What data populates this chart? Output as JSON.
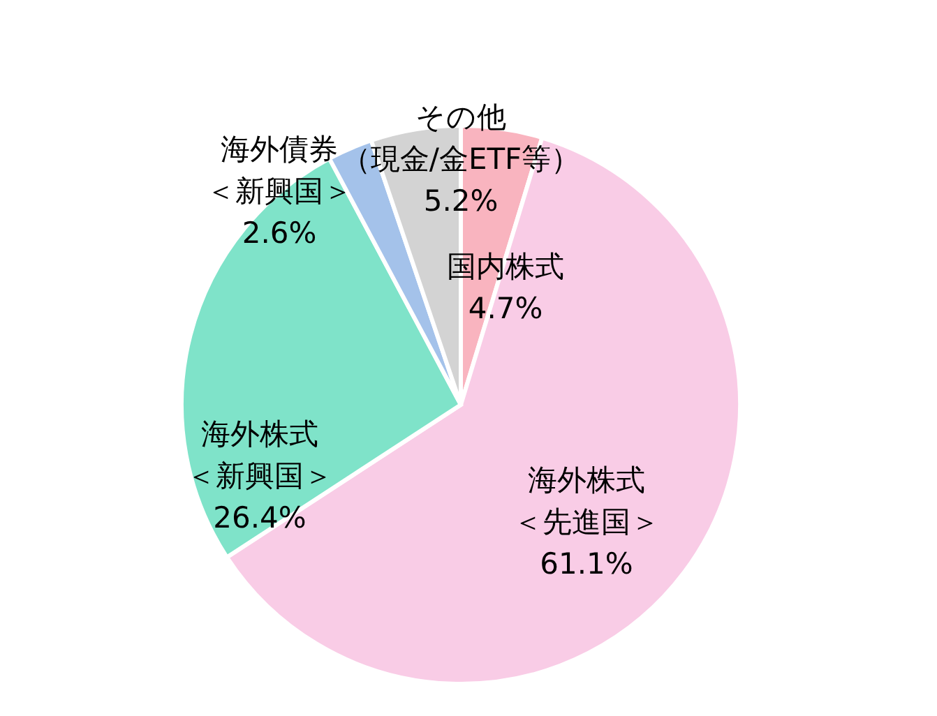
{
  "chart_data": {
    "type": "pie",
    "categories": [
      "国内株式",
      "海外株式＜先進国＞",
      "海外株式＜新興国＞",
      "海外債券＜新興国＞",
      "その他（現金/金ETF等）"
    ],
    "values": [
      4.7,
      61.1,
      26.4,
      2.6,
      5.2
    ],
    "value_labels": [
      "4.7%",
      "61.1%",
      "26.4%",
      "2.6%",
      "5.2%"
    ],
    "colors": [
      "#f9b4bf",
      "#f9cce6",
      "#7fe3c9",
      "#a4c2ea",
      "#d3d3d3"
    ]
  }
}
